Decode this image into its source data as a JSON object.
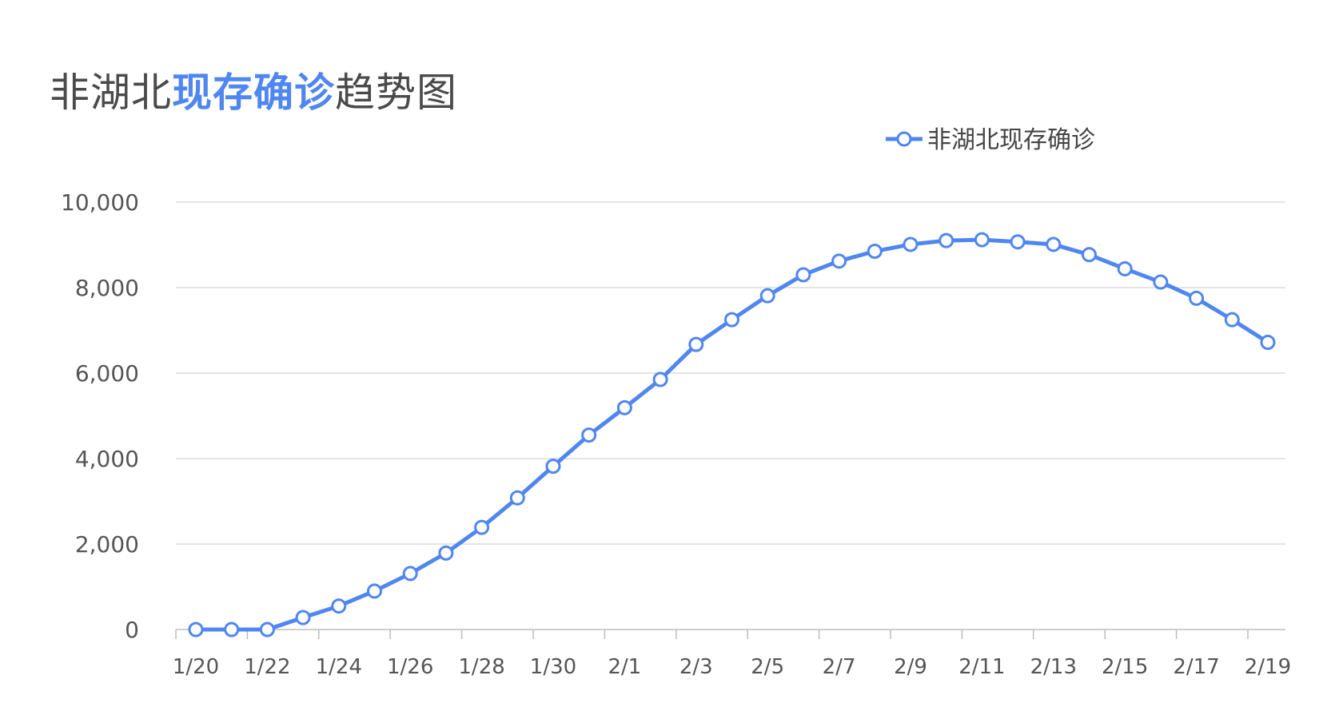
{
  "page": {
    "title_parts": [
      {
        "text": "非湖北",
        "highlight": false
      },
      {
        "text": "现存确诊",
        "highlight": true
      },
      {
        "text": "趋势图",
        "highlight": false
      }
    ]
  },
  "chart_data": {
    "type": "line",
    "title": "非湖北现存确诊趋势图",
    "xlabel": "",
    "ylabel": "",
    "categories": [
      "1/20",
      "1/21",
      "1/22",
      "1/23",
      "1/24",
      "1/25",
      "1/26",
      "1/27",
      "1/28",
      "1/29",
      "1/30",
      "1/31",
      "2/1",
      "2/2",
      "2/3",
      "2/4",
      "2/5",
      "2/6",
      "2/7",
      "2/8",
      "2/9",
      "2/10",
      "2/11",
      "2/12",
      "2/13",
      "2/14",
      "2/15",
      "2/16",
      "2/17",
      "2/18",
      "2/19"
    ],
    "x_tick_labels": [
      "1/20",
      "1/22",
      "1/24",
      "1/26",
      "1/28",
      "1/30",
      "2/1",
      "2/3",
      "2/5",
      "2/7",
      "2/9",
      "2/11",
      "2/13",
      "2/15",
      "2/17",
      "2/19"
    ],
    "y_ticks": [
      0,
      2000,
      4000,
      6000,
      8000,
      10000
    ],
    "y_tick_labels": [
      "0",
      "2,000",
      "4,000",
      "6,000",
      "8,000",
      "10,000"
    ],
    "ylim": [
      0,
      10000
    ],
    "grid": true,
    "legend_position": "top-right",
    "series": [
      {
        "name": "非湖北现存确诊",
        "color": "#4f86f0",
        "values": [
          0,
          0,
          0,
          280,
          550,
          900,
          1310,
          1790,
          2390,
          3080,
          3820,
          4550,
          5190,
          5850,
          6670,
          7250,
          7810,
          8300,
          8620,
          8850,
          9010,
          9100,
          9120,
          9070,
          9010,
          8770,
          8440,
          8130,
          7750,
          7250,
          6720
        ]
      }
    ]
  }
}
